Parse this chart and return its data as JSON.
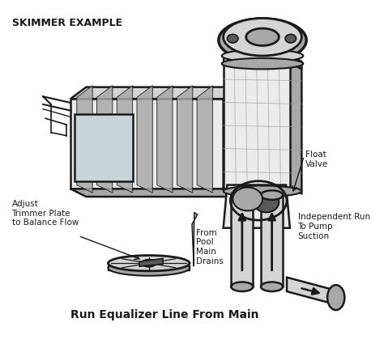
{
  "title": "SKIMMER EXAMPLE",
  "footer_text": "Run Equalizer Line From Main",
  "labels": {
    "float_valve": "Float\nValve",
    "adjust_trimmer": "Adjust\nTrimmer Plate\nto Balance Flow",
    "from_pool": "From\nPool\nMain\nDrains",
    "independent_run": "Independent Run\nTo Pump\nSuction"
  },
  "bg_color": "#ffffff",
  "draw_color": "#1a1a1a",
  "gray_light": "#d4d4d4",
  "gray_mid": "#a8a8a8",
  "gray_dark": "#5a5a5a",
  "gray_vlight": "#ebebeb"
}
